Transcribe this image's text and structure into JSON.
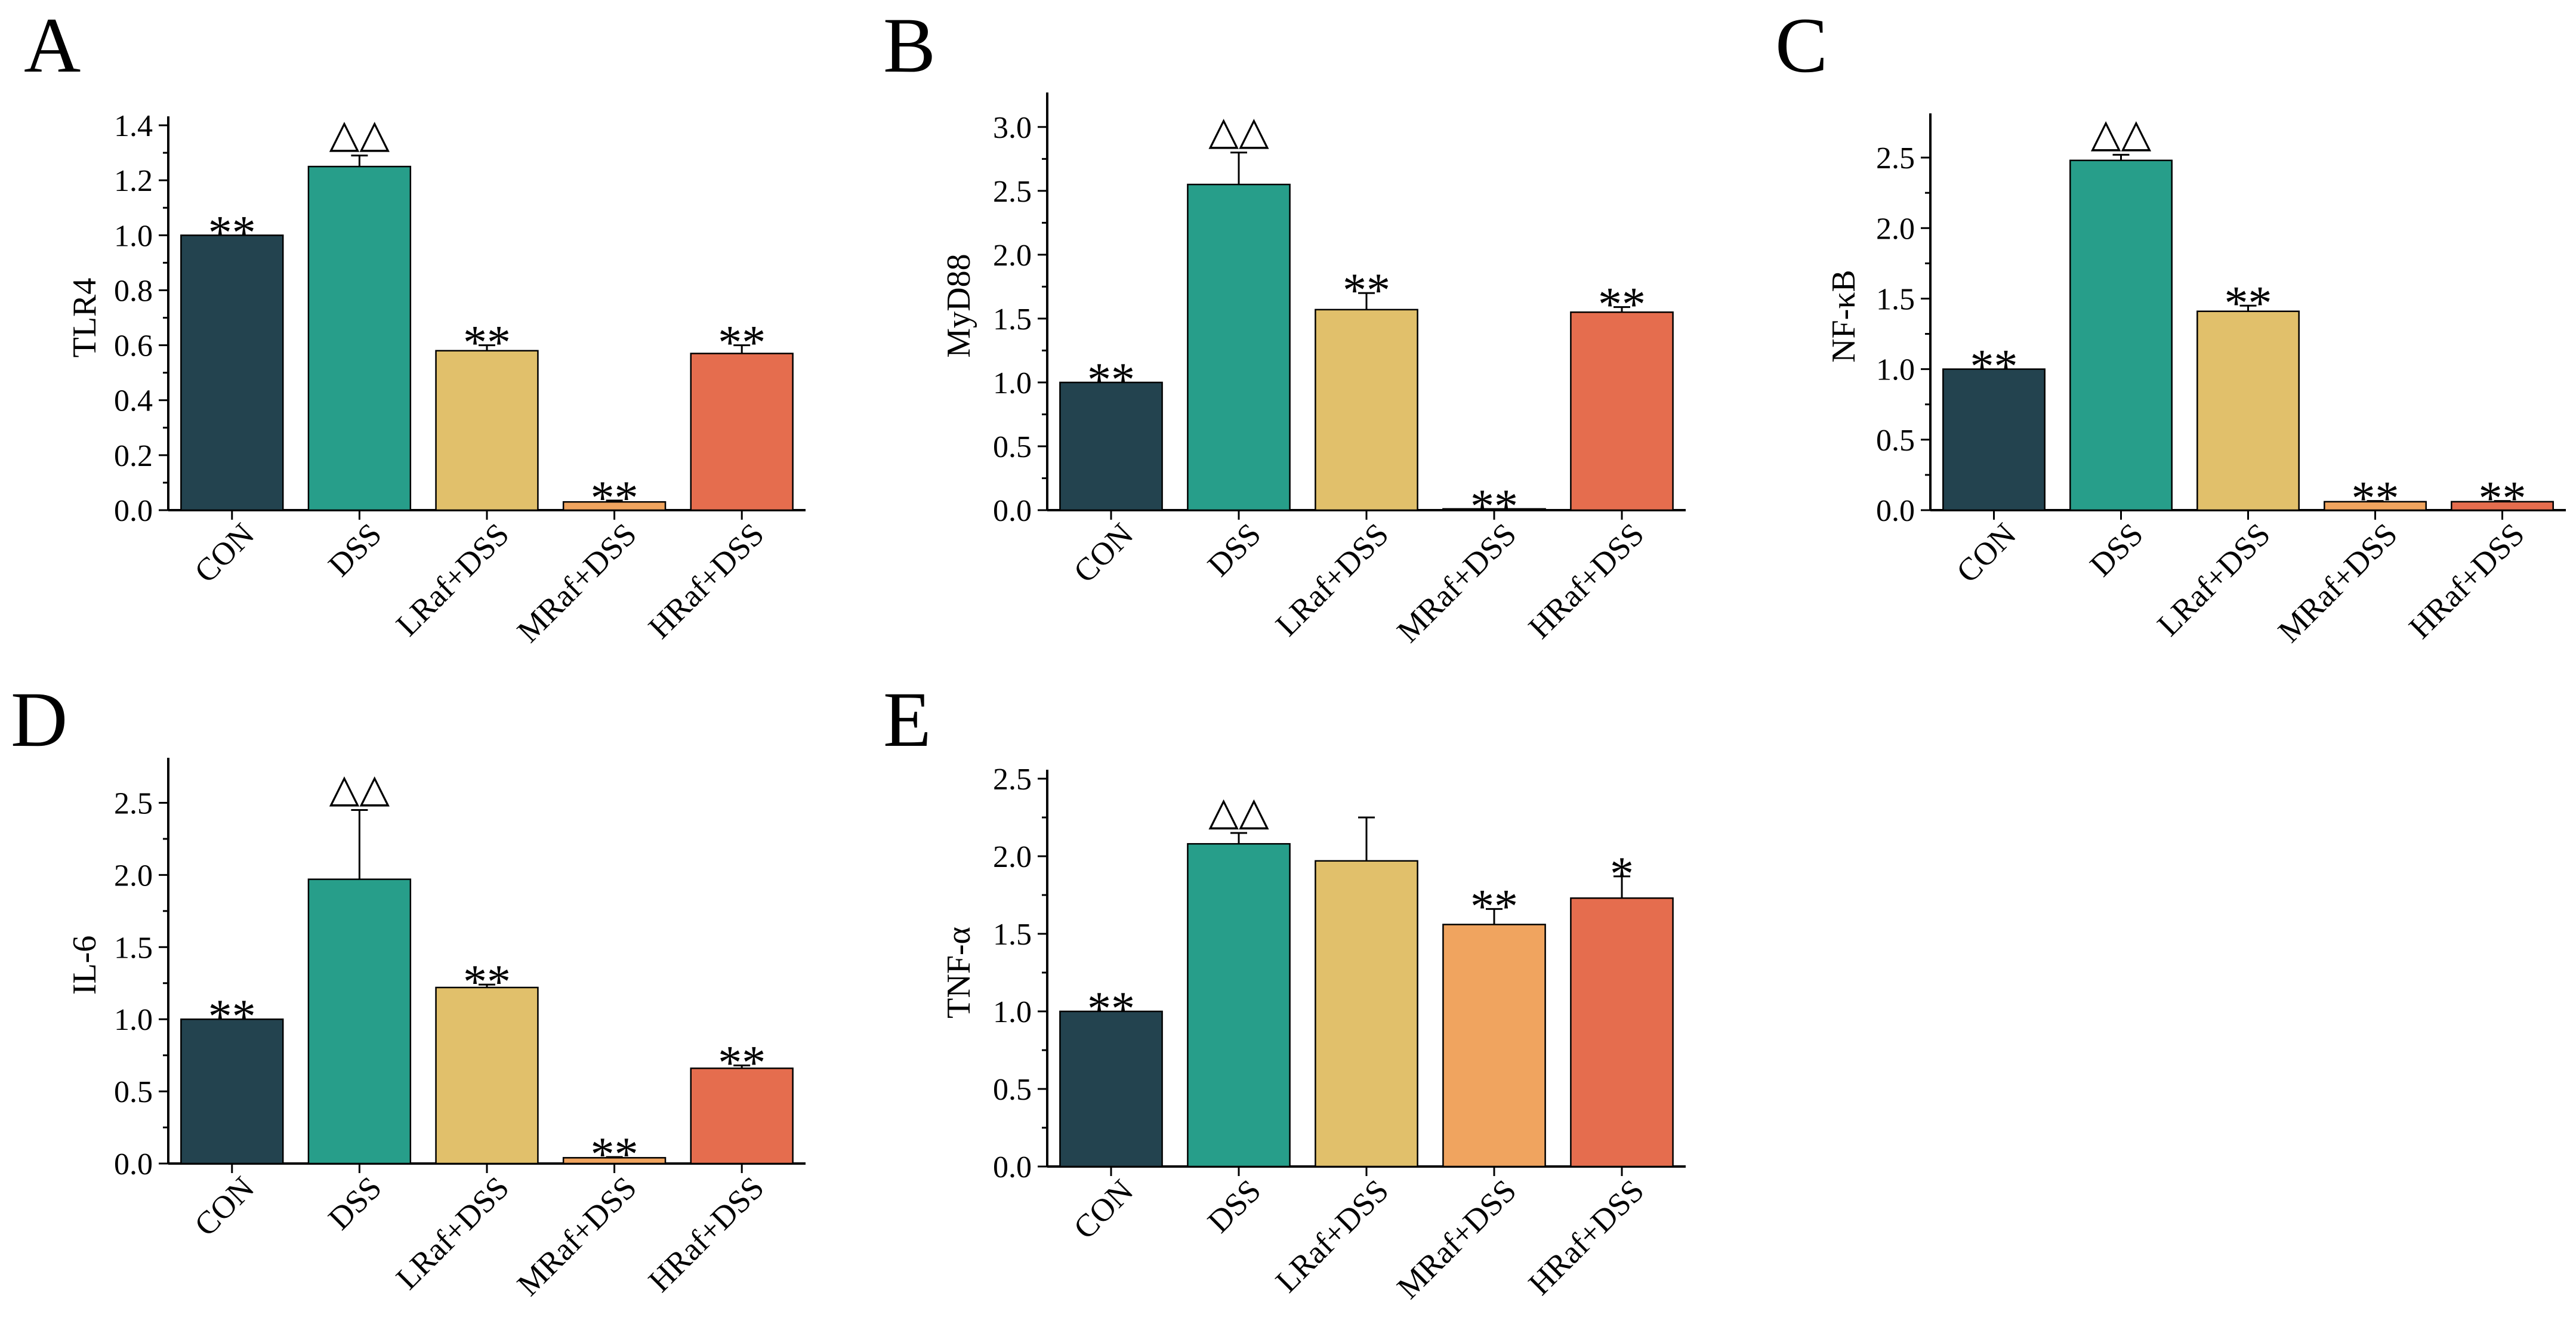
{
  "colors": {
    "CON": "#23434f",
    "DSS": "#279e8a",
    "LRaf+DSS": "#e1c06b",
    "MRaf+DSS": "#f0a45f",
    "HRaf+DSS": "#e56d4e",
    "stroke": "#000000"
  },
  "chart_data": [
    {
      "panel": "A",
      "type": "bar",
      "ylabel": "TLR4",
      "ylim": [
        0,
        1.4
      ],
      "yticks": [
        "0.0",
        "0.2",
        "0.4",
        "0.6",
        "0.8",
        "1.0",
        "1.2",
        "1.4"
      ],
      "categories": [
        "CON",
        "DSS",
        "LRaf+DSS",
        "MRaf+DSS",
        "HRaf+DSS"
      ],
      "values": [
        1.0,
        1.25,
        0.58,
        0.03,
        0.57
      ],
      "errors": [
        0.0,
        0.04,
        0.02,
        0.005,
        0.03
      ],
      "significance": [
        "**",
        "△△",
        "**",
        "**",
        "**"
      ]
    },
    {
      "panel": "B",
      "type": "bar",
      "ylabel": "MyD88",
      "ylim": [
        0,
        3.2
      ],
      "yticks": [
        "0.0",
        "0.5",
        "1.0",
        "1.5",
        "2.0",
        "2.5",
        "3.0"
      ],
      "categories": [
        "CON",
        "DSS",
        "LRaf+DSS",
        "MRaf+DSS",
        "HRaf+DSS"
      ],
      "values": [
        1.0,
        2.55,
        1.57,
        0.01,
        1.55
      ],
      "errors": [
        0.0,
        0.25,
        0.13,
        0.0,
        0.04
      ],
      "significance": [
        "**",
        "△△",
        "**",
        "**",
        "**"
      ]
    },
    {
      "panel": "C",
      "type": "bar",
      "ylabel": "NF-κB",
      "ylim": [
        0,
        2.75
      ],
      "yticks": [
        "0.0",
        "0.5",
        "1.0",
        "1.5",
        "2.0",
        "2.5"
      ],
      "categories": [
        "CON",
        "DSS",
        "LRaf+DSS",
        "MRaf+DSS",
        "HRaf+DSS"
      ],
      "values": [
        1.0,
        2.48,
        1.41,
        0.06,
        0.06
      ],
      "errors": [
        0.0,
        0.04,
        0.04,
        0.005,
        0.005
      ],
      "significance": [
        "**",
        "△△",
        "**",
        "**",
        "**"
      ]
    },
    {
      "panel": "D",
      "type": "bar",
      "ylabel": "IL-6",
      "ylim": [
        0,
        2.75
      ],
      "yticks": [
        "0.0",
        "0.5",
        "1.0",
        "1.5",
        "2.0",
        "2.5"
      ],
      "categories": [
        "CON",
        "DSS",
        "LRaf+DSS",
        "MRaf+DSS",
        "HRaf+DSS"
      ],
      "values": [
        1.0,
        1.97,
        1.22,
        0.04,
        0.66
      ],
      "errors": [
        0.0,
        0.48,
        0.02,
        0.005,
        0.02
      ],
      "significance": [
        "**",
        "△△",
        "**",
        "**",
        "**"
      ]
    },
    {
      "panel": "E",
      "type": "bar",
      "ylabel": "TNF-α",
      "ylim": [
        0,
        2.5
      ],
      "yticks": [
        "0.0",
        "0.5",
        "1.0",
        "1.5",
        "2.0",
        "2.5"
      ],
      "categories": [
        "CON",
        "DSS",
        "LRaf+DSS",
        "MRaf+DSS",
        "HRaf+DSS"
      ],
      "values": [
        1.0,
        2.08,
        1.97,
        1.56,
        1.73
      ],
      "errors": [
        0.0,
        0.07,
        0.28,
        0.1,
        0.14
      ],
      "significance": [
        "**",
        "△△",
        "",
        "**",
        "*"
      ]
    }
  ]
}
